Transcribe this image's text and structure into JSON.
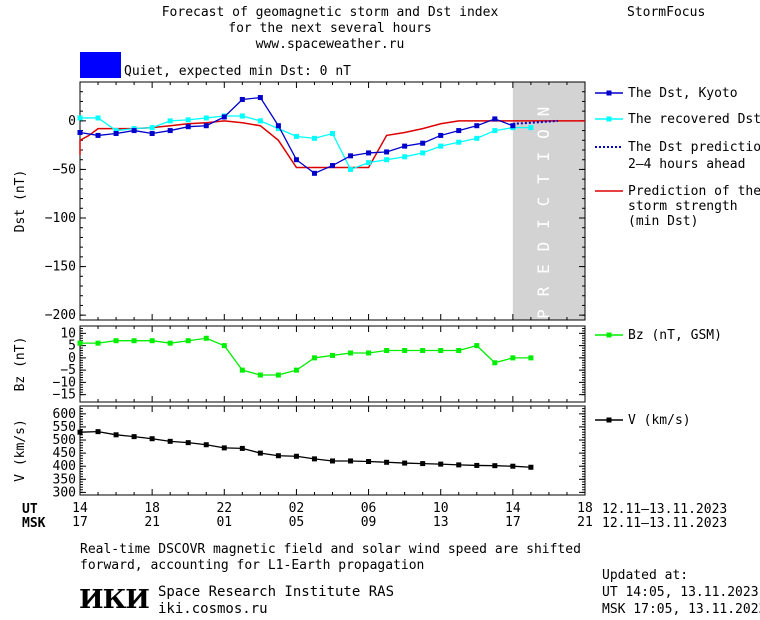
{
  "header": {
    "title_line1": "Forecast of geomagnetic storm and Dst index",
    "title_line2": "for the next several hours",
    "title_line3": "www.spaceweather.ru",
    "brand": "StormFocus",
    "status_text": "Quiet, expected min Dst: 0 nT",
    "status_color": "#0000ff"
  },
  "legend": {
    "dst_kyoto": "The Dst, Kyoto",
    "dst_recovered": "The recovered Dst",
    "dst_prediction_l1": "The Dst prediction",
    "dst_prediction_l2": "2–4 hours ahead",
    "storm_l1": "Prediction of the",
    "storm_l2": "storm strength",
    "storm_l3": "(min Dst)",
    "bz": "Bz (nT, GSM)",
    "v": "V (km/s)"
  },
  "footer": {
    "note_l1": "Real-time DSCOVR magnetic field and solar wind speed are shifted",
    "note_l2": "forward, accounting for L1-Earth propagation",
    "institute": "Space Research Institute RAS",
    "site": "iki.cosmos.ru",
    "logo_text": "ИКИ",
    "updated_label": "Updated at:",
    "updated_ut": "UT  14:05, 13.11.2023",
    "updated_msk": "MSK 17:05, 13.11.2023"
  },
  "axis": {
    "ut_label": "UT",
    "msk_label": "MSK",
    "ut_ticks": [
      "14",
      "18",
      "22",
      "02",
      "06",
      "10",
      "14",
      "18"
    ],
    "msk_ticks": [
      "17",
      "21",
      "01",
      "05",
      "09",
      "13",
      "17",
      "21"
    ],
    "date_range": "12.11–13.11.2023"
  },
  "colors": {
    "kyoto": "#0000cc",
    "recovered": "#00ffff",
    "prediction": "#0000cc",
    "storm": "#dd0000",
    "bz": "#00ee00",
    "v": "#000000",
    "prediction_band": "#d3d3d3"
  },
  "chart_data": [
    {
      "type": "line",
      "name": "dst-panel",
      "xlabel": "",
      "ylabel": "Dst (nT)",
      "prediction_label": "PREDICTION",
      "ylim": [
        -205,
        40
      ],
      "yticks": [
        0,
        -50,
        -100,
        -150,
        -200
      ],
      "xlim_hours": [
        0,
        28
      ],
      "prediction_start_hour": 24,
      "series": [
        {
          "name": "The Dst, Kyoto",
          "marker": "square",
          "x": [
            0,
            1,
            2,
            3,
            4,
            5,
            6,
            7,
            8,
            9,
            10,
            11,
            12,
            13,
            14,
            15,
            16,
            17,
            18,
            19,
            20,
            21,
            22,
            23,
            24
          ],
          "y": [
            -12,
            -15,
            -13,
            -10,
            -13,
            -10,
            -6,
            -5,
            4,
            22,
            24,
            -5,
            -40,
            -54,
            -46,
            -36,
            -33,
            -32,
            -26,
            -23,
            -15,
            -10,
            -5,
            2,
            -5
          ]
        },
        {
          "name": "The recovered Dst",
          "marker": "square",
          "x": [
            0,
            1,
            2,
            3,
            4,
            5,
            6,
            7,
            8,
            9,
            10,
            11,
            12,
            13,
            14,
            15,
            16,
            17,
            18,
            19,
            20,
            21,
            22,
            23,
            24,
            25
          ],
          "y": [
            3,
            3,
            -10,
            -8,
            -7,
            0,
            1,
            3,
            5,
            5,
            0,
            -8,
            -16,
            -18,
            -13,
            -50,
            -43,
            -40,
            -37,
            -33,
            -26,
            -22,
            -18,
            -10,
            -7,
            -7
          ]
        },
        {
          "name": "The Dst prediction 2–4 hours ahead",
          "dashed": true,
          "x": [
            24,
            25,
            26.5
          ],
          "y": [
            -3,
            -2,
            0
          ]
        },
        {
          "name": "Prediction of the storm strength (min Dst)",
          "x": [
            -1,
            0,
            0.5,
            1,
            2,
            3,
            4,
            5,
            6,
            7,
            8,
            9,
            10,
            11,
            12,
            13,
            14,
            15,
            16,
            17,
            18,
            19,
            20,
            21,
            22,
            23,
            24,
            28
          ],
          "y": [
            -35,
            -20,
            -15,
            -8,
            -8,
            -8,
            -7,
            -5,
            -3,
            -2,
            0,
            -2,
            -5,
            -20,
            -48,
            -48,
            -48,
            -48,
            -48,
            -15,
            -12,
            -8,
            -3,
            0,
            0,
            0,
            0,
            0
          ]
        }
      ]
    },
    {
      "type": "line",
      "name": "bz-panel",
      "ylabel": "Bz (nT)",
      "ylim": [
        -18,
        13
      ],
      "yticks": [
        10,
        5,
        0,
        -5,
        -10,
        -15
      ],
      "series": [
        {
          "name": "Bz (nT, GSM)",
          "marker": "square",
          "x": [
            0,
            1,
            2,
            3,
            4,
            5,
            6,
            7,
            8,
            9,
            10,
            11,
            12,
            13,
            14,
            15,
            16,
            17,
            18,
            19,
            20,
            21,
            22,
            23,
            24,
            25
          ],
          "y": [
            6,
            6,
            7,
            7,
            7,
            6,
            7,
            8,
            5,
            -5,
            -7,
            -7,
            -5,
            0,
            1,
            2,
            2,
            3,
            3,
            3,
            3,
            3,
            5,
            -2,
            0,
            0
          ]
        }
      ]
    },
    {
      "type": "line",
      "name": "v-panel",
      "ylabel": "V (km/s)",
      "ylim": [
        290,
        630
      ],
      "yticks": [
        600,
        550,
        500,
        450,
        400,
        350,
        300
      ],
      "series": [
        {
          "name": "V (km/s)",
          "marker": "square",
          "x": [
            0,
            1,
            2,
            3,
            4,
            5,
            6,
            7,
            8,
            9,
            10,
            11,
            12,
            13,
            14,
            15,
            16,
            17,
            18,
            19,
            20,
            21,
            22,
            23,
            24,
            25
          ],
          "y": [
            530,
            532,
            520,
            513,
            505,
            495,
            490,
            482,
            470,
            468,
            450,
            440,
            438,
            428,
            420,
            420,
            418,
            415,
            412,
            410,
            408,
            405,
            403,
            402,
            400,
            396
          ]
        }
      ]
    }
  ]
}
